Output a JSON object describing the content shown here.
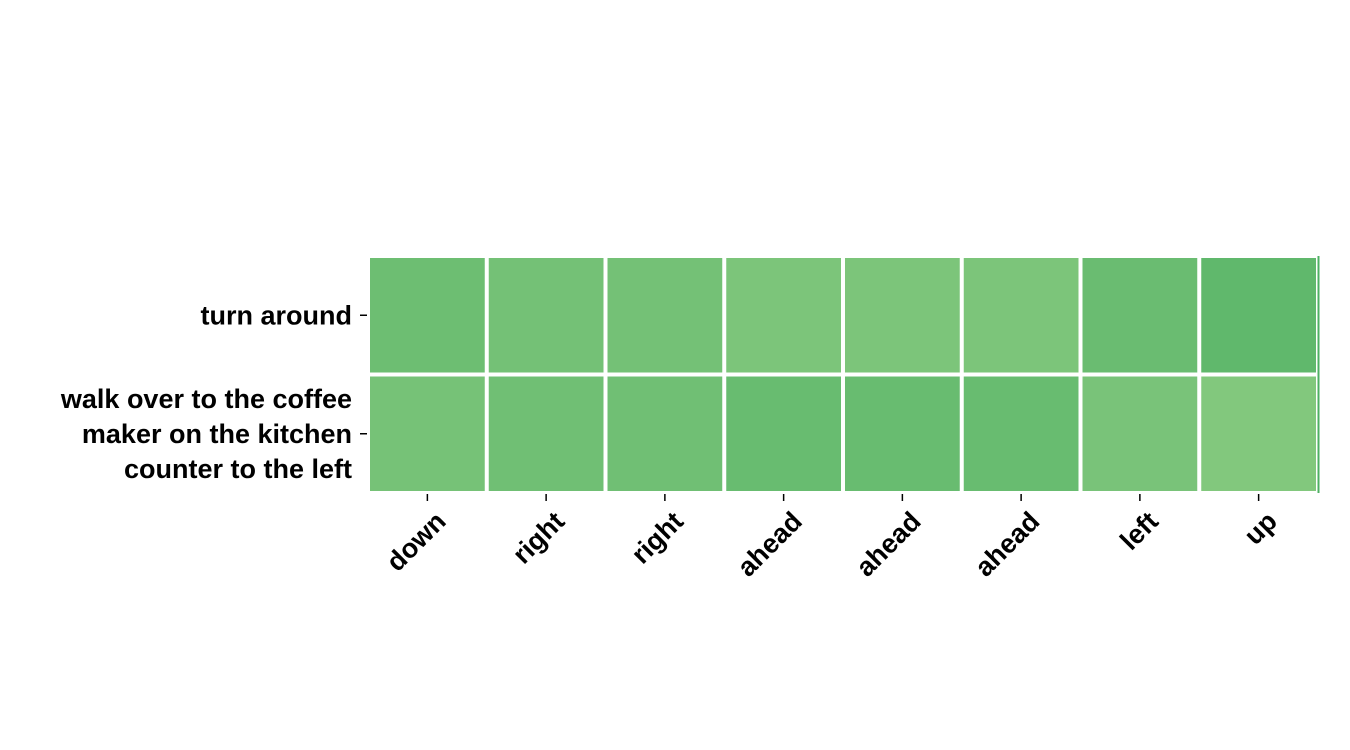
{
  "chart_data": {
    "type": "heatmap",
    "title": "",
    "xlabel": "",
    "ylabel": "",
    "x_categories": [
      "down",
      "right",
      "right",
      "ahead",
      "ahead",
      "ahead",
      "left",
      "up"
    ],
    "y_categories": [
      "turn around",
      "walk over to the coffee maker on the kitchen counter to the left"
    ],
    "y_label_lines": [
      [
        "turn around"
      ],
      [
        "walk over to the coffee",
        "maker on the kitchen",
        "counter to the left"
      ]
    ],
    "values": [
      [
        0.62,
        0.52,
        0.52,
        0.42,
        0.42,
        0.42,
        0.66,
        0.78
      ],
      [
        0.5,
        0.58,
        0.58,
        0.68,
        0.68,
        0.68,
        0.46,
        0.34
      ]
    ],
    "colormap": "Greens",
    "color_low": "#9dd48a",
    "color_high": "#4fb064",
    "grid": false,
    "legend": "none"
  }
}
